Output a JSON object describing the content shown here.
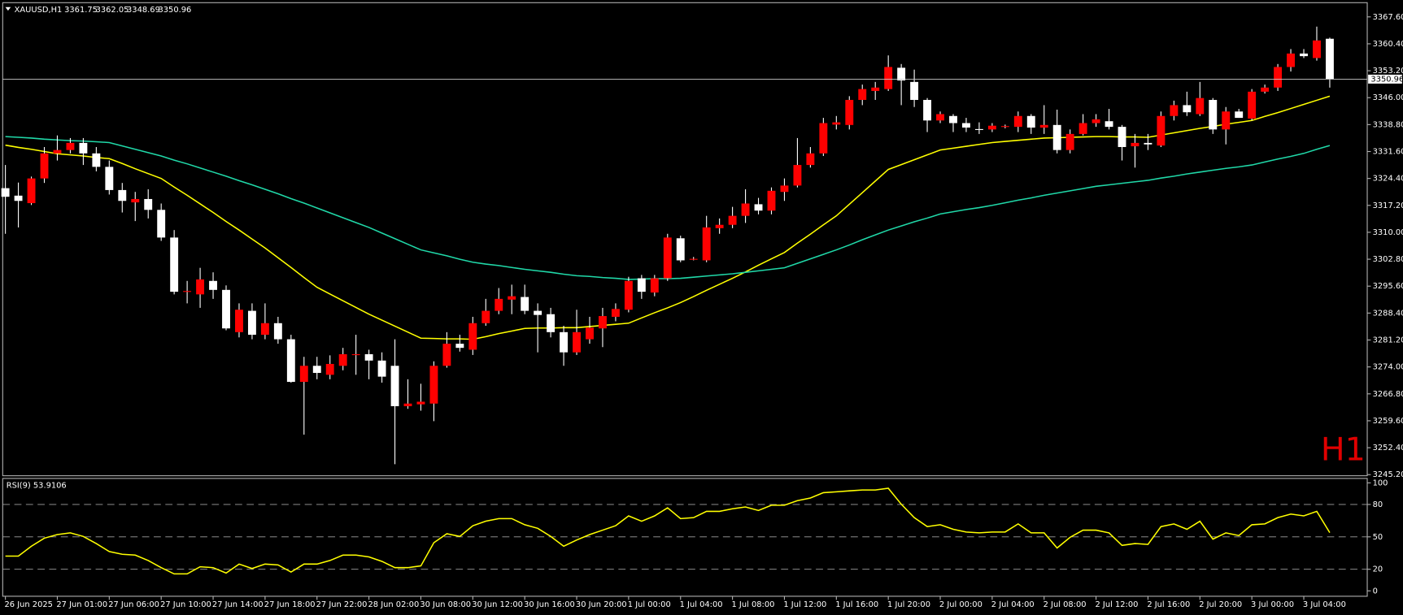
{
  "chart_data": [
    {
      "type": "candlestick",
      "title": "XAUUSD,H1",
      "annotation": "H1",
      "annotation_color": "#e00000",
      "up_color": "#ff0000",
      "down_color": "#ffffff",
      "wick_color": "#ffffff",
      "price_line_color": "#c8c8c8",
      "ylim": [
        3244.9,
        3371.4
      ],
      "yticks": [
        {
          "value": 3245.2,
          "label": "3245.20"
        },
        {
          "value": 3252.4,
          "label": "3252.40"
        },
        {
          "value": 3259.6,
          "label": "3259.60"
        },
        {
          "value": 3266.8,
          "label": "3266.80"
        },
        {
          "value": 3274.0,
          "label": "3274.00"
        },
        {
          "value": 3281.2,
          "label": "3281.20"
        },
        {
          "value": 3288.4,
          "label": "3288.40"
        },
        {
          "value": 3295.6,
          "label": "3295.60"
        },
        {
          "value": 3302.8,
          "label": "3302.80"
        },
        {
          "value": 3310.0,
          "label": "3310.00"
        },
        {
          "value": 3317.2,
          "label": "3317.20"
        },
        {
          "value": 3324.4,
          "label": "3324.40"
        },
        {
          "value": 3331.6,
          "label": "3331.60"
        },
        {
          "value": 3338.8,
          "label": "3338.80"
        },
        {
          "value": 3346.0,
          "label": "3346.00"
        },
        {
          "value": 3353.2,
          "label": "3353.20"
        },
        {
          "value": 3360.4,
          "label": "3360.40"
        },
        {
          "value": 3367.6,
          "label": "3367.60"
        }
      ],
      "categories": [
        "26 Jun 2025",
        null,
        null,
        null,
        "27 Jun 01:00",
        null,
        null,
        null,
        "27 Jun 06:00",
        null,
        null,
        null,
        "27 Jun 10:00",
        null,
        null,
        null,
        "27 Jun 14:00",
        null,
        null,
        null,
        "27 Jun 18:00",
        null,
        null,
        null,
        "27 Jun 22:00",
        null,
        null,
        null,
        "28 Jun 02:00",
        null,
        null,
        null,
        "30 Jun 08:00",
        null,
        null,
        null,
        "30 Jun 12:00",
        null,
        null,
        null,
        "30 Jun 16:00",
        null,
        null,
        null,
        "30 Jun 20:00",
        null,
        null,
        null,
        "1 Jul 00:00",
        null,
        null,
        null,
        "1 Jul 04:00",
        null,
        null,
        null,
        "1 Jul 08:00",
        null,
        null,
        null,
        "1 Jul 12:00",
        null,
        null,
        null,
        "1 Jul 16:00",
        null,
        null,
        null,
        "1 Jul 20:00",
        null,
        null,
        null,
        "2 Jul 00:00",
        null,
        null,
        null,
        "2 Jul 04:00",
        null,
        null,
        null,
        "2 Jul 08:00",
        null,
        null,
        null,
        "2 Jul 12:00",
        null,
        null,
        null,
        "2 Jul 16:00",
        null,
        null,
        null,
        "2 Jul 20:00",
        null,
        null,
        null,
        "3 Jul 00:00",
        null,
        null,
        null,
        "3 Jul 04:00",
        null,
        null
      ],
      "ohlc": [
        [
          3321.8,
          3328.0,
          3309.6,
          3319.5
        ],
        [
          3319.8,
          3323.3,
          3311.3,
          3318.4
        ],
        [
          3317.8,
          3324.9,
          3317.3,
          3324.4
        ],
        [
          3324.4,
          3332.8,
          3323.2,
          3331.1
        ],
        [
          3331.1,
          3335.9,
          3329.2,
          3332.0
        ],
        [
          3332.0,
          3335.2,
          3331.1,
          3333.9
        ],
        [
          3333.9,
          3335.2,
          3328.0,
          3331.1
        ],
        [
          3331.1,
          3332.8,
          3326.3,
          3327.5
        ],
        [
          3327.5,
          3329.2,
          3320.1,
          3321.3
        ],
        [
          3321.3,
          3323.2,
          3315.3,
          3318.4
        ],
        [
          3318.0,
          3320.8,
          3313.0,
          3318.9
        ],
        [
          3318.9,
          3321.5,
          3313.7,
          3316.0
        ],
        [
          3316.0,
          3317.7,
          3307.7,
          3308.6
        ],
        [
          3308.6,
          3310.6,
          3293.4,
          3294.1
        ],
        [
          3294.1,
          3297.0,
          3291.0,
          3294.3
        ],
        [
          3293.4,
          3300.5,
          3289.8,
          3297.4
        ],
        [
          3297.0,
          3299.3,
          3292.2,
          3294.6
        ],
        [
          3294.6,
          3295.8,
          3283.8,
          3284.3
        ],
        [
          3283.3,
          3291.0,
          3281.9,
          3289.3
        ],
        [
          3289.0,
          3291.0,
          3281.4,
          3282.6
        ],
        [
          3282.6,
          3291.0,
          3281.4,
          3285.7
        ],
        [
          3285.7,
          3287.4,
          3280.2,
          3281.4
        ],
        [
          3281.4,
          3282.6,
          3269.8,
          3270.0
        ],
        [
          3270.0,
          3276.7,
          3255.9,
          3274.3
        ],
        [
          3274.3,
          3276.7,
          3270.7,
          3272.4
        ],
        [
          3271.9,
          3277.1,
          3270.7,
          3274.8
        ],
        [
          3274.3,
          3279.1,
          3273.1,
          3277.4
        ],
        [
          3277.2,
          3282.6,
          3271.9,
          3277.4
        ],
        [
          3277.4,
          3278.6,
          3270.7,
          3275.7
        ],
        [
          3275.7,
          3277.9,
          3269.8,
          3271.4
        ],
        [
          3274.3,
          3281.4,
          3248.0,
          3263.5
        ],
        [
          3263.5,
          3270.7,
          3262.8,
          3264.2
        ],
        [
          3264.0,
          3269.5,
          3262.3,
          3264.7
        ],
        [
          3264.2,
          3275.5,
          3259.5,
          3274.3
        ],
        [
          3274.3,
          3283.3,
          3273.8,
          3280.2
        ],
        [
          3280.2,
          3282.6,
          3278.1,
          3279.1
        ],
        [
          3278.6,
          3287.4,
          3277.2,
          3285.7
        ],
        [
          3285.7,
          3292.2,
          3285.0,
          3289.0
        ],
        [
          3289.0,
          3295.1,
          3288.1,
          3292.2
        ],
        [
          3292.0,
          3296.0,
          3288.1,
          3292.9
        ],
        [
          3292.7,
          3296.0,
          3288.1,
          3289.0
        ],
        [
          3289.0,
          3291.0,
          3277.9,
          3287.9
        ],
        [
          3288.1,
          3289.8,
          3281.9,
          3283.3
        ],
        [
          3283.3,
          3285.0,
          3274.3,
          3277.9
        ],
        [
          3277.9,
          3289.3,
          3277.2,
          3283.3
        ],
        [
          3281.4,
          3287.4,
          3280.2,
          3284.5
        ],
        [
          3284.3,
          3289.8,
          3279.3,
          3287.6
        ],
        [
          3287.4,
          3291.0,
          3286.2,
          3289.5
        ],
        [
          3289.3,
          3298.1,
          3288.6,
          3297.0
        ],
        [
          3297.7,
          3298.6,
          3292.2,
          3294.1
        ],
        [
          3293.9,
          3298.6,
          3292.9,
          3297.7
        ],
        [
          3297.7,
          3309.6,
          3297.0,
          3308.6
        ],
        [
          3308.4,
          3309.1,
          3302.0,
          3302.5
        ],
        [
          3302.9,
          3303.4,
          3302.5,
          3302.9
        ],
        [
          3302.5,
          3314.4,
          3302.0,
          3311.3
        ],
        [
          3311.1,
          3313.7,
          3309.6,
          3312.0
        ],
        [
          3312.0,
          3316.8,
          3311.1,
          3314.4
        ],
        [
          3314.4,
          3321.5,
          3312.5,
          3317.7
        ],
        [
          3317.5,
          3319.2,
          3314.8,
          3315.8
        ],
        [
          3315.8,
          3322.0,
          3314.8,
          3321.1
        ],
        [
          3320.8,
          3324.4,
          3318.4,
          3322.5
        ],
        [
          3322.5,
          3335.2,
          3322.0,
          3328.0
        ],
        [
          3328.0,
          3332.8,
          3327.3,
          3331.1
        ],
        [
          3331.1,
          3340.6,
          3330.4,
          3339.2
        ],
        [
          3338.8,
          3341.1,
          3337.5,
          3339.4
        ],
        [
          3338.7,
          3346.4,
          3337.5,
          3345.4
        ],
        [
          3345.4,
          3349.5,
          3344.0,
          3348.3
        ],
        [
          3347.8,
          3350.2,
          3345.4,
          3348.7
        ],
        [
          3348.3,
          3357.3,
          3347.8,
          3354.2
        ],
        [
          3354.0,
          3355.0,
          3344.0,
          3350.6
        ],
        [
          3350.2,
          3353.5,
          3343.5,
          3345.4
        ],
        [
          3345.4,
          3345.9,
          3336.8,
          3339.9
        ],
        [
          3339.9,
          3342.3,
          3339.2,
          3341.6
        ],
        [
          3341.1,
          3341.6,
          3336.8,
          3339.2
        ],
        [
          3339.2,
          3340.6,
          3336.8,
          3338.0
        ],
        [
          3337.6,
          3339.4,
          3336.3,
          3337.5
        ],
        [
          3337.5,
          3339.2,
          3336.8,
          3338.5
        ],
        [
          3338.2,
          3338.8,
          3337.8,
          3338.4
        ],
        [
          3338.2,
          3342.3,
          3336.8,
          3341.1
        ],
        [
          3341.1,
          3341.6,
          3336.3,
          3338.0
        ],
        [
          3338.0,
          3344.0,
          3336.3,
          3338.7
        ],
        [
          3338.7,
          3342.8,
          3331.1,
          3332.0
        ],
        [
          3332.0,
          3337.5,
          3331.1,
          3336.3
        ],
        [
          3336.3,
          3341.6,
          3335.9,
          3339.2
        ],
        [
          3339.2,
          3341.6,
          3338.2,
          3340.2
        ],
        [
          3339.7,
          3343.0,
          3337.5,
          3338.2
        ],
        [
          3338.2,
          3338.7,
          3329.2,
          3332.8
        ],
        [
          3333.0,
          3336.3,
          3327.3,
          3333.9
        ],
        [
          3333.9,
          3336.3,
          3332.0,
          3333.5
        ],
        [
          3333.2,
          3342.3,
          3332.8,
          3341.1
        ],
        [
          3341.1,
          3345.2,
          3339.9,
          3344.0
        ],
        [
          3344.0,
          3347.6,
          3341.1,
          3342.1
        ],
        [
          3341.6,
          3350.2,
          3341.1,
          3345.9
        ],
        [
          3345.4,
          3345.9,
          3336.3,
          3337.5
        ],
        [
          3337.5,
          3343.5,
          3333.5,
          3342.3
        ],
        [
          3342.3,
          3343.0,
          3340.6,
          3340.6
        ],
        [
          3340.4,
          3348.3,
          3339.9,
          3347.6
        ],
        [
          3347.6,
          3349.5,
          3347.1,
          3348.7
        ],
        [
          3348.7,
          3355.0,
          3347.8,
          3354.2
        ],
        [
          3354.2,
          3359.0,
          3353.0,
          3357.8
        ],
        [
          3357.8,
          3359.0,
          3356.6,
          3357.1
        ],
        [
          3356.6,
          3365.0,
          3355.9,
          3361.3
        ],
        [
          3361.75,
          3362.05,
          3348.69,
          3350.96
        ]
      ],
      "series": [
        {
          "color": "#ffff00",
          "values": [
            3333.3,
            3332.7,
            3332.2,
            3331.6,
            3331.0,
            3330.7,
            3330.4,
            3330.0,
            3329.7,
            3328.4,
            3327.0,
            3325.7,
            3324.4,
            3322.1,
            3319.9,
            3317.6,
            3315.3,
            3312.9,
            3310.6,
            3308.2,
            3305.8,
            3303.2,
            3300.6,
            3297.9,
            3295.3,
            3293.5,
            3291.7,
            3289.9,
            3288.1,
            3286.5,
            3284.9,
            3283.3,
            3281.7,
            3281.6,
            3281.5,
            3281.5,
            3281.4,
            3282.1,
            3282.9,
            3283.6,
            3284.3,
            3284.4,
            3284.4,
            3284.5,
            3284.5,
            3284.8,
            3285.1,
            3285.4,
            3285.7,
            3287.1,
            3288.5,
            3289.8,
            3291.2,
            3292.8,
            3294.5,
            3296.1,
            3297.7,
            3299.4,
            3301.2,
            3302.9,
            3304.6,
            3307.1,
            3309.5,
            3312.0,
            3314.4,
            3317.5,
            3320.6,
            3323.7,
            3326.8,
            3328.1,
            3329.4,
            3330.7,
            3332.0,
            3332.5,
            3333.0,
            3333.5,
            3334.0,
            3334.3,
            3334.6,
            3334.9,
            3335.2,
            3335.3,
            3335.4,
            3335.5,
            3335.6,
            3335.6,
            3335.5,
            3335.5,
            3335.4,
            3336.0,
            3336.6,
            3337.2,
            3337.8,
            3338.3,
            3338.9,
            3339.4,
            3339.9,
            3341.0,
            3342.0,
            3343.1,
            3344.2,
            3345.3,
            3346.4
          ]
        },
        {
          "color": "#20d8a8",
          "values": [
            3335.6,
            3335.4,
            3335.2,
            3334.9,
            3334.7,
            3334.5,
            3334.4,
            3334.2,
            3334.0,
            3333.1,
            3332.2,
            3331.3,
            3330.4,
            3329.3,
            3328.3,
            3327.2,
            3326.1,
            3325.0,
            3323.8,
            3322.7,
            3321.5,
            3320.3,
            3319.0,
            3317.8,
            3316.5,
            3315.2,
            3313.9,
            3312.6,
            3311.3,
            3309.8,
            3308.3,
            3306.8,
            3305.3,
            3304.5,
            3303.7,
            3302.8,
            3302.0,
            3301.5,
            3301.1,
            3300.6,
            3300.1,
            3299.7,
            3299.3,
            3298.8,
            3298.4,
            3298.2,
            3297.9,
            3297.7,
            3297.4,
            3297.5,
            3297.6,
            3297.6,
            3297.7,
            3298.0,
            3298.3,
            3298.6,
            3298.9,
            3299.3,
            3299.7,
            3300.1,
            3300.5,
            3301.7,
            3302.9,
            3304.1,
            3305.3,
            3306.6,
            3308.0,
            3309.3,
            3310.6,
            3311.7,
            3312.8,
            3313.8,
            3314.9,
            3315.5,
            3316.1,
            3316.6,
            3317.2,
            3317.9,
            3318.6,
            3319.2,
            3319.9,
            3320.5,
            3321.1,
            3321.7,
            3322.3,
            3322.7,
            3323.1,
            3323.5,
            3323.9,
            3324.5,
            3325.0,
            3325.6,
            3326.1,
            3326.6,
            3327.1,
            3327.5,
            3328.0,
            3328.8,
            3329.6,
            3330.3,
            3331.1,
            3332.2,
            3333.2
          ]
        }
      ]
    },
    {
      "type": "line",
      "title": "RSI(9) 53.9106",
      "color": "#ffff00",
      "level_color": "#a0a0a0",
      "ylim": [
        -5.0,
        104.1
      ],
      "yticks": [
        0,
        20,
        50,
        80,
        100
      ],
      "levels": [
        20,
        50,
        80
      ],
      "values": [
        32.2,
        32.2,
        41.3,
        48.8,
        52.1,
        53.7,
        50.4,
        43.8,
        36.4,
        33.9,
        33.1,
        28.1,
        21.5,
        15.7,
        15.7,
        22.3,
        21.5,
        16.5,
        24.8,
        20.7,
        24.8,
        24.0,
        17.4,
        24.8,
        24.8,
        28.1,
        33.1,
        33.1,
        31.4,
        27.3,
        21.5,
        21.5,
        23.1,
        44.6,
        52.9,
        50.4,
        60.3,
        64.5,
        66.9,
        66.9,
        61.2,
        57.9,
        50.4,
        41.3,
        47.1,
        52.1,
        56.2,
        60.3,
        69.4,
        64.5,
        69.4,
        76.9,
        66.9,
        67.8,
        73.6,
        73.6,
        76.0,
        77.7,
        74.4,
        79.3,
        79.3,
        83.5,
        86.0,
        90.9,
        91.7,
        92.6,
        93.4,
        93.4,
        95.0,
        80.2,
        67.8,
        59.5,
        61.2,
        57.0,
        54.5,
        53.7,
        54.5,
        54.5,
        62.0,
        53.7,
        53.7,
        39.7,
        49.6,
        56.2,
        56.2,
        53.7,
        42.1,
        43.8,
        43.0,
        59.5,
        62.0,
        57.0,
        64.5,
        47.9,
        53.7,
        51.2,
        61.2,
        62.0,
        67.8,
        71.1,
        69.4,
        73.6,
        53.9106
      ]
    }
  ]
}
